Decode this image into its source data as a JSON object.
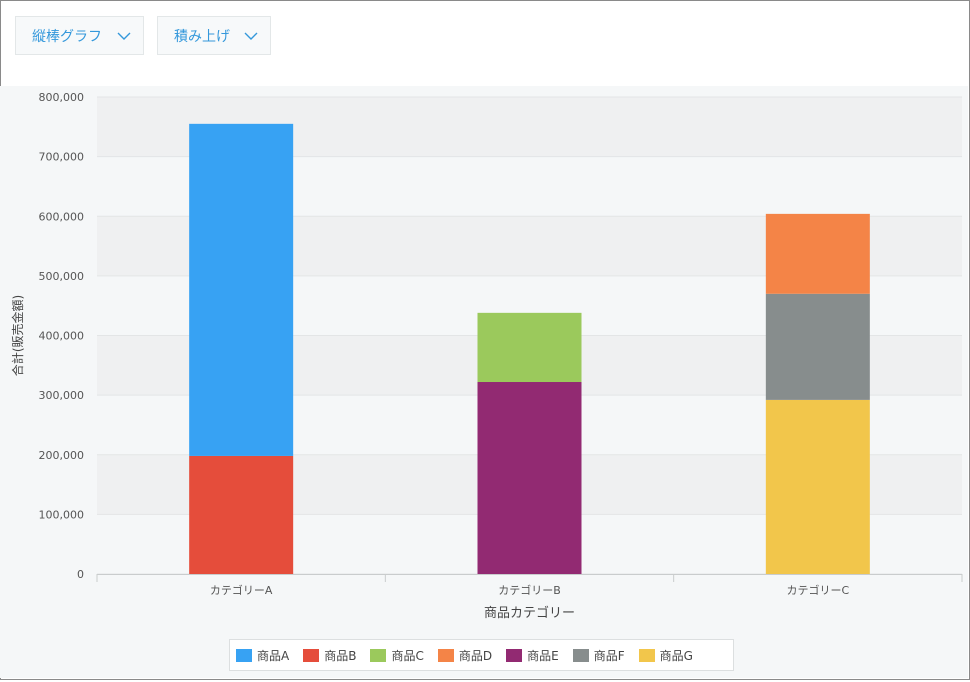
{
  "toolbar": {
    "chart_type_label": "縦棒グラフ",
    "stack_mode_label": "積み上げ"
  },
  "icons": {
    "dropdown": "chevron-down-icon"
  },
  "colors": {
    "accent": "#3498db",
    "grid_band": "#eff0f1",
    "plot_bg": "#f5f7f8"
  },
  "chart_data": {
    "type": "bar",
    "stacked": true,
    "categories": [
      "カテゴリーA",
      "カテゴリーB",
      "カテゴリーC"
    ],
    "xlabel": "商品カテゴリー",
    "ylabel": "合計(販売金額)",
    "ylim": [
      0,
      800000
    ],
    "yticks": [
      0,
      100000,
      200000,
      300000,
      400000,
      500000,
      600000,
      700000,
      800000
    ],
    "ytick_labels": [
      "0",
      "100,000",
      "200,000",
      "300,000",
      "400,000",
      "500,000",
      "600,000",
      "700,000",
      "800,000"
    ],
    "legend_position": "bottom",
    "series": [
      {
        "name": "商品A",
        "color": "#37a2f3",
        "values": [
          557000,
          0,
          0
        ]
      },
      {
        "name": "商品B",
        "color": "#e54d3b",
        "values": [
          198000,
          0,
          0
        ]
      },
      {
        "name": "商品C",
        "color": "#9bc95c",
        "values": [
          0,
          116000,
          0
        ]
      },
      {
        "name": "商品D",
        "color": "#f48447",
        "values": [
          0,
          0,
          134000
        ]
      },
      {
        "name": "商品E",
        "color": "#922a72",
        "values": [
          0,
          322000,
          0
        ]
      },
      {
        "name": "商品F",
        "color": "#878d8d",
        "values": [
          0,
          0,
          178000
        ]
      },
      {
        "name": "商品G",
        "color": "#f2c64b",
        "values": [
          0,
          0,
          292000
        ]
      }
    ],
    "stack_order": [
      "商品B",
      "商品A",
      "商品E",
      "商品C",
      "商品G",
      "商品F",
      "商品D"
    ]
  }
}
